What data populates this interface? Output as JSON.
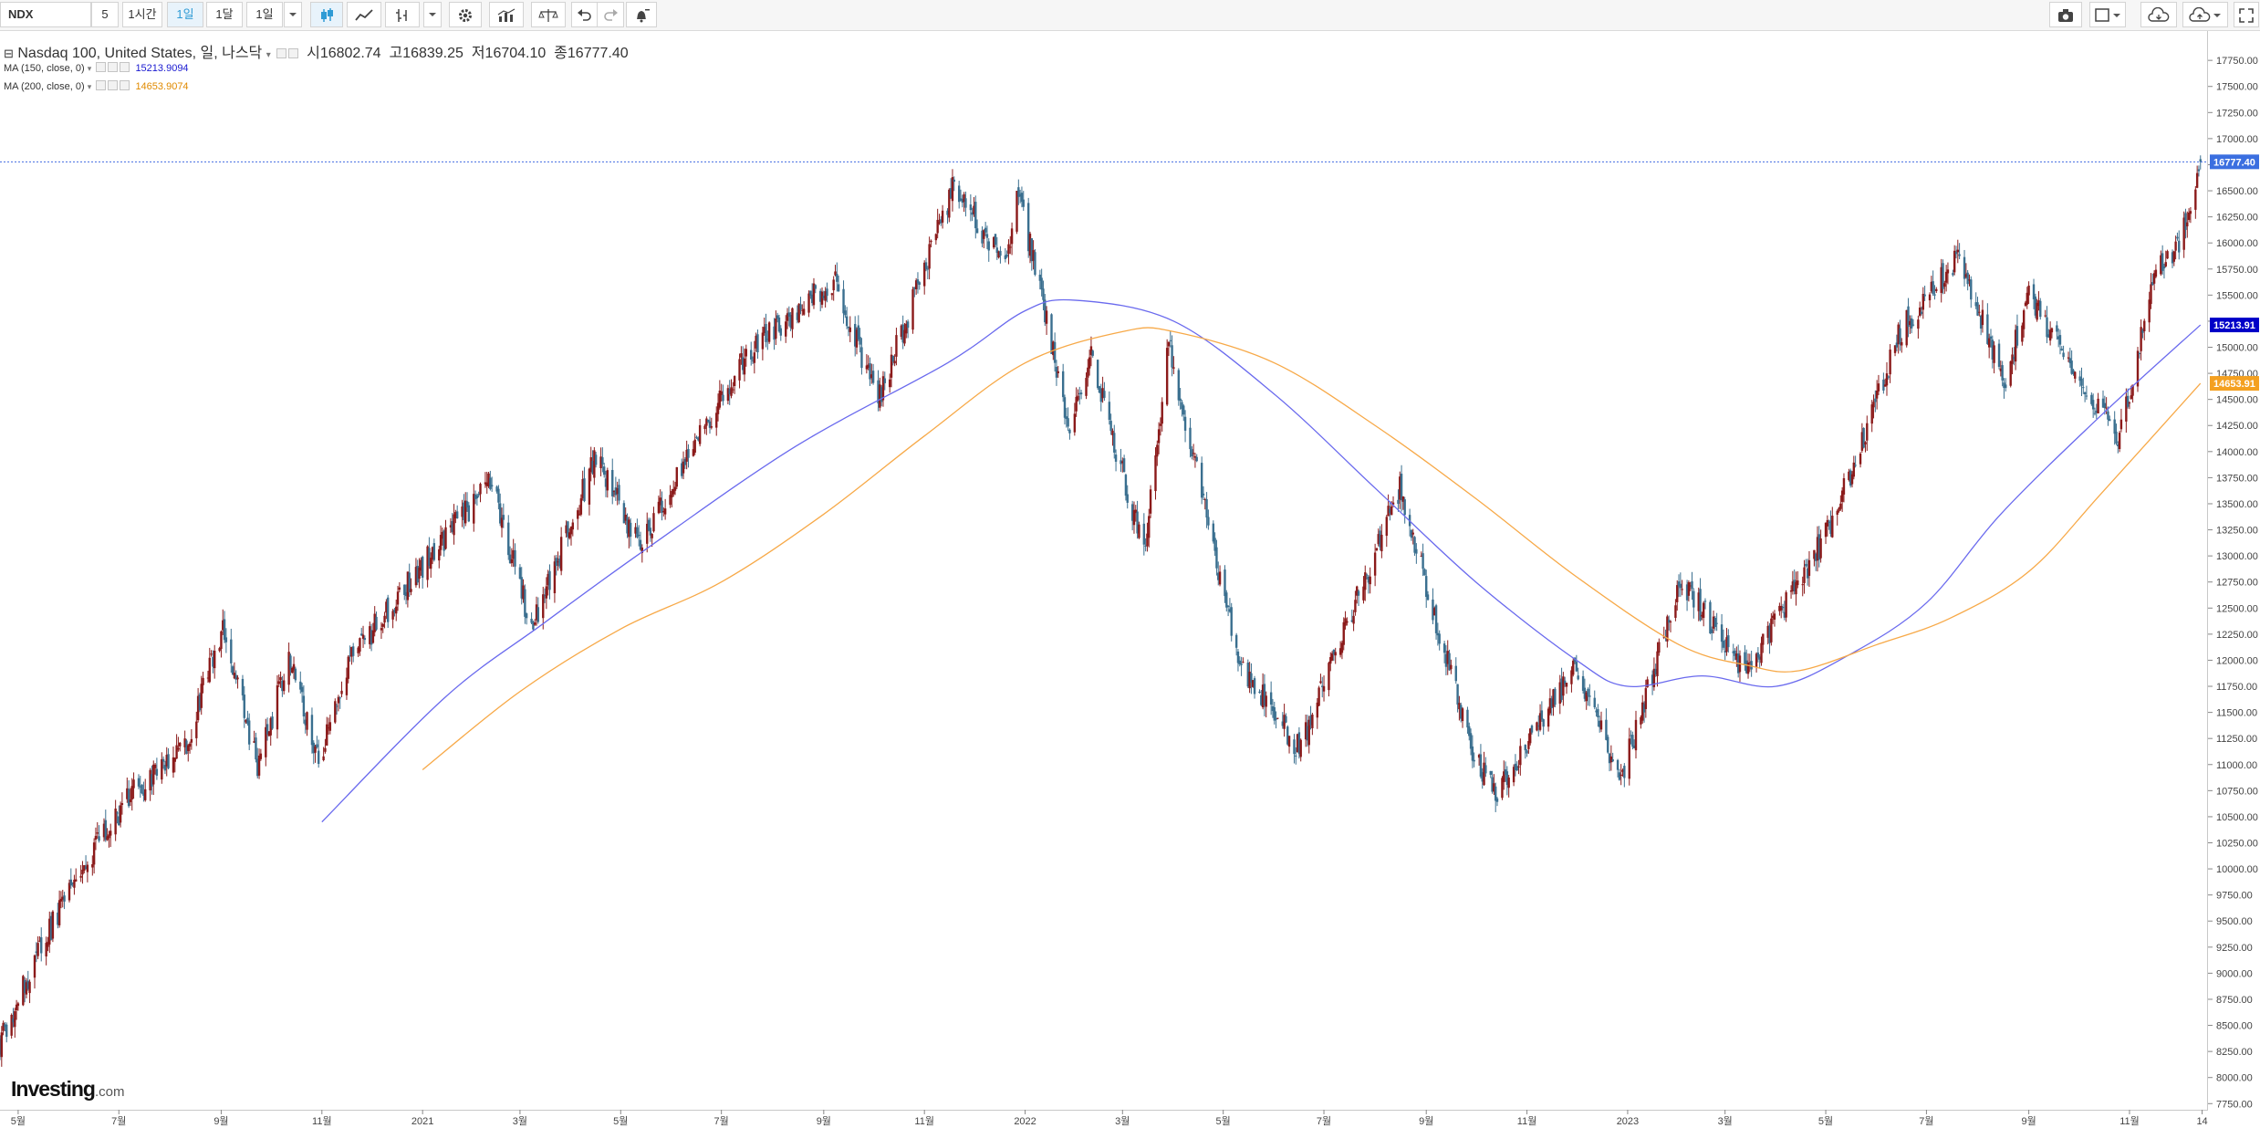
{
  "toolbar": {
    "symbol": "NDX",
    "interval_buttons": [
      "5",
      "1시간",
      "1일",
      "1달",
      "1일"
    ],
    "active_interval_index": 2,
    "icons": [
      "candle-icon",
      "line-style-icon",
      "bar-style-icon",
      "settings-icon",
      "indicators-icon",
      "compare-icon",
      "undo-icon",
      "redo-icon",
      "alert-icon",
      "camera-icon",
      "layout-icon",
      "cloud-load-icon",
      "cloud-save-icon",
      "fullscreen-icon"
    ]
  },
  "legend": {
    "title": "Nasdaq 100, United States, 일, 나스닥",
    "open_label": "시",
    "open": "16802.74",
    "high_label": "고",
    "high": "16839.25",
    "low_label": "저",
    "low": "16704.10",
    "close_label": "종",
    "close": "16777.40",
    "ma150_label": "MA (150, close, 0)",
    "ma150_value": "15213.9094",
    "ma200_label": "MA (200, close, 0)",
    "ma200_value": "14653.9074"
  },
  "logo": {
    "main": "Investing",
    "suffix": ".com"
  },
  "colors": {
    "up": "#8b1a1a",
    "down": "#3a6f8f",
    "ma150": "#6a6aee",
    "ma200": "#f7a948",
    "last_price_line": "#4169e1",
    "badge_last": "#3b6fe0",
    "badge_ma150": "#0000c8",
    "badge_ma200": "#f4a020"
  },
  "chart_data": {
    "type": "candlestick",
    "title": "Nasdaq 100, United States, 일, 나스닥",
    "y_axis_side": "right",
    "ylim": [
      7700,
      17900
    ],
    "y_ticks": [
      7750,
      8000,
      8250,
      8500,
      8750,
      9000,
      9250,
      9500,
      9750,
      10000,
      10250,
      10500,
      10750,
      11000,
      11250,
      11500,
      11750,
      12000,
      12250,
      12500,
      12750,
      13000,
      13250,
      13500,
      13750,
      14000,
      14250,
      14500,
      14750,
      15000,
      15250,
      15500,
      15750,
      16000,
      16250,
      16500,
      16750,
      17000,
      17250,
      17500,
      17750
    ],
    "y_tick_labels": [
      "7750.00",
      "8000.00",
      "8250.00",
      "8500.00",
      "8750.00",
      "9000.00",
      "9250.00",
      "9500.00",
      "9750.00",
      "10000.00",
      "10250.00",
      "10500.00",
      "10750.00",
      "11000.00",
      "11250.00",
      "11500.00",
      "11750.00",
      "12000.00",
      "12250.00",
      "12500.00",
      "12750.00",
      "13000.00",
      "13250.00",
      "13500.00",
      "13750.00",
      "14000.00",
      "14250.00",
      "14500.00",
      "14750.00",
      "15000.00",
      "15250.00",
      "15500.00",
      "15750.00",
      "16000.00",
      "16250.00",
      "16500.00",
      "16750.00",
      "17000.00",
      "17250.00",
      "17500.00",
      "17750.00"
    ],
    "x_range": [
      "2020-04-20",
      "2023-12-18"
    ],
    "x_ticks": [
      {
        "date": "2020-05-01",
        "label": "5월"
      },
      {
        "date": "2020-07-01",
        "label": "7월"
      },
      {
        "date": "2020-09-01",
        "label": "9월"
      },
      {
        "date": "2020-11-01",
        "label": "11월"
      },
      {
        "date": "2021-01-01",
        "label": "2021"
      },
      {
        "date": "2021-03-01",
        "label": "3월"
      },
      {
        "date": "2021-05-01",
        "label": "5월"
      },
      {
        "date": "2021-07-01",
        "label": "7월"
      },
      {
        "date": "2021-09-01",
        "label": "9월"
      },
      {
        "date": "2021-11-01",
        "label": "11월"
      },
      {
        "date": "2022-01-01",
        "label": "2022"
      },
      {
        "date": "2022-03-01",
        "label": "3월"
      },
      {
        "date": "2022-05-01",
        "label": "5월"
      },
      {
        "date": "2022-07-01",
        "label": "7월"
      },
      {
        "date": "2022-09-01",
        "label": "9월"
      },
      {
        "date": "2022-11-01",
        "label": "11월"
      },
      {
        "date": "2023-01-01",
        "label": "2023"
      },
      {
        "date": "2023-03-01",
        "label": "3월"
      },
      {
        "date": "2023-05-01",
        "label": "5월"
      },
      {
        "date": "2023-07-01",
        "label": "7월"
      },
      {
        "date": "2023-09-01",
        "label": "9월"
      },
      {
        "date": "2023-11-01",
        "label": "11월"
      },
      {
        "date": "2023-12-15",
        "label": "14"
      }
    ],
    "close_path": [
      [
        "2020-04-20",
        8350
      ],
      [
        "2020-05-15",
        9250
      ],
      [
        "2020-06-08",
        10000
      ],
      [
        "2020-07-10",
        10750
      ],
      [
        "2020-08-10",
        11150
      ],
      [
        "2020-09-02",
        12300
      ],
      [
        "2020-09-23",
        11000
      ],
      [
        "2020-10-12",
        12000
      ],
      [
        "2020-10-30",
        11050
      ],
      [
        "2020-11-20",
        12050
      ],
      [
        "2020-12-31",
        12900
      ],
      [
        "2021-02-12",
        13700
      ],
      [
        "2021-03-08",
        12300
      ],
      [
        "2021-04-16",
        13950
      ],
      [
        "2021-05-12",
        13100
      ],
      [
        "2021-07-15",
        14900
      ],
      [
        "2021-09-07",
        15650
      ],
      [
        "2021-10-04",
        14500
      ],
      [
        "2021-11-19",
        16550
      ],
      [
        "2021-12-20",
        15750
      ],
      [
        "2021-12-28",
        16500
      ],
      [
        "2022-01-27",
        14250
      ],
      [
        "2022-02-10",
        14900
      ],
      [
        "2022-03-14",
        13050
      ],
      [
        "2022-03-29",
        15050
      ],
      [
        "2022-05-11",
        11950
      ],
      [
        "2022-06-16",
        11150
      ],
      [
        "2022-08-16",
        13650
      ],
      [
        "2022-09-30",
        11050
      ],
      [
        "2022-10-13",
        10700
      ],
      [
        "2022-11-30",
        11950
      ],
      [
        "2022-12-28",
        10850
      ],
      [
        "2023-02-02",
        12800
      ],
      [
        "2023-03-13",
        11850
      ],
      [
        "2023-05-05",
        13300
      ],
      [
        "2023-06-15",
        15150
      ],
      [
        "2023-07-19",
        15850
      ],
      [
        "2023-08-18",
        14700
      ],
      [
        "2023-09-01",
        15500
      ],
      [
        "2023-10-26",
        14100
      ],
      [
        "2023-11-15",
        15700
      ],
      [
        "2023-12-01",
        16000
      ],
      [
        "2023-12-14",
        16777.4
      ]
    ],
    "series": [
      {
        "name": "MA (150, close, 0)",
        "points": [
          [
            "2020-11-01",
            10450
          ],
          [
            "2021-01-15",
            11650
          ],
          [
            "2021-03-15",
            12350
          ],
          [
            "2021-05-15",
            13050
          ],
          [
            "2021-08-15",
            14050
          ],
          [
            "2021-11-15",
            14850
          ],
          [
            "2022-01-01",
            15350
          ],
          [
            "2022-02-01",
            15450
          ],
          [
            "2022-04-01",
            15250
          ],
          [
            "2022-06-01",
            14550
          ],
          [
            "2022-08-01",
            13650
          ],
          [
            "2022-10-01",
            12750
          ],
          [
            "2022-12-01",
            12000
          ],
          [
            "2023-01-01",
            11750
          ],
          [
            "2023-02-15",
            11850
          ],
          [
            "2023-04-01",
            11750
          ],
          [
            "2023-05-15",
            12050
          ],
          [
            "2023-07-01",
            12550
          ],
          [
            "2023-08-15",
            13400
          ],
          [
            "2023-10-15",
            14350
          ],
          [
            "2023-12-14",
            15213.91
          ]
        ]
      },
      {
        "name": "MA (200, close, 0)",
        "points": [
          [
            "2021-01-01",
            10950
          ],
          [
            "2021-03-01",
            11700
          ],
          [
            "2021-05-01",
            12300
          ],
          [
            "2021-07-01",
            12750
          ],
          [
            "2021-09-01",
            13400
          ],
          [
            "2021-11-01",
            14150
          ],
          [
            "2022-01-01",
            14850
          ],
          [
            "2022-03-01",
            15150
          ],
          [
            "2022-04-01",
            15150
          ],
          [
            "2022-06-01",
            14850
          ],
          [
            "2022-08-01",
            14250
          ],
          [
            "2022-10-01",
            13550
          ],
          [
            "2022-12-01",
            12800
          ],
          [
            "2023-02-01",
            12150
          ],
          [
            "2023-03-15",
            11950
          ],
          [
            "2023-04-15",
            11900
          ],
          [
            "2023-06-01",
            12150
          ],
          [
            "2023-07-15",
            12400
          ],
          [
            "2023-09-01",
            12850
          ],
          [
            "2023-10-15",
            13600
          ],
          [
            "2023-12-14",
            14653.91
          ]
        ]
      }
    ],
    "last_price": {
      "value": 16777.4,
      "label": "16777.40"
    },
    "ma150_badge": {
      "value": 15213.91,
      "label": "15213.91"
    },
    "ma200_badge": {
      "value": 14653.91,
      "label": "14653.91"
    },
    "grid": false
  }
}
